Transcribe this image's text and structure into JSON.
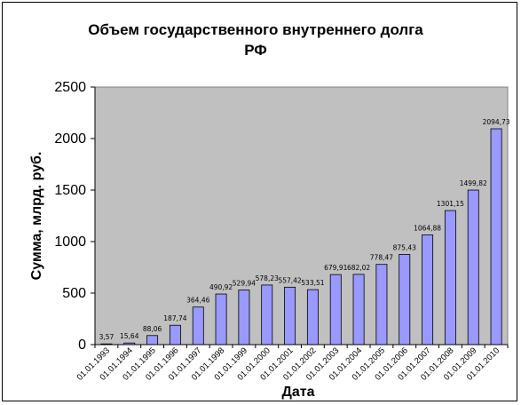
{
  "chart_data": {
    "type": "bar",
    "title_line1": "Объем государственного внутреннего долга",
    "title_line2": "РФ",
    "xlabel": "Дата",
    "ylabel": "Сумма, млрд. руб.",
    "ylim": [
      0,
      2500
    ],
    "yticks": [
      "0",
      "500",
      "1000",
      "1500",
      "2000",
      "2500"
    ],
    "categories": [
      "01.01.1993",
      "01.01.1994",
      "01.01.1995",
      "01.01.1996",
      "01.01.1997",
      "01.01.1998",
      "01.01.1999",
      "01.01.2000",
      "01.01.2001",
      "01.01.2002",
      "01.01.2003",
      "01.01.2004",
      "01.01.2005",
      "01.01.2006",
      "01.01.2007",
      "01.01.2008",
      "01.01.2009",
      "01.01.2010"
    ],
    "values": [
      3.57,
      15.64,
      88.06,
      187.74,
      364.46,
      490.92,
      529.94,
      578.23,
      557.42,
      533.51,
      679.91,
      682.02,
      778.47,
      875.43,
      1064.88,
      1301.15,
      1499.82,
      2094.73
    ],
    "labels": [
      "3,57",
      "15,64",
      "88,06",
      "187,74",
      "364,46",
      "490,92",
      "529,94",
      "578,23",
      "557,42",
      "533,51",
      "679,91",
      "682,02",
      "778,47",
      "875,43",
      "1064,88",
      "1301,15",
      "1499,82",
      "2094,73"
    ],
    "grid": false,
    "legend": "none",
    "plot_background": "#c0c0c0",
    "bar_color": "#9999ff",
    "bar_edge_color": "#000000"
  }
}
